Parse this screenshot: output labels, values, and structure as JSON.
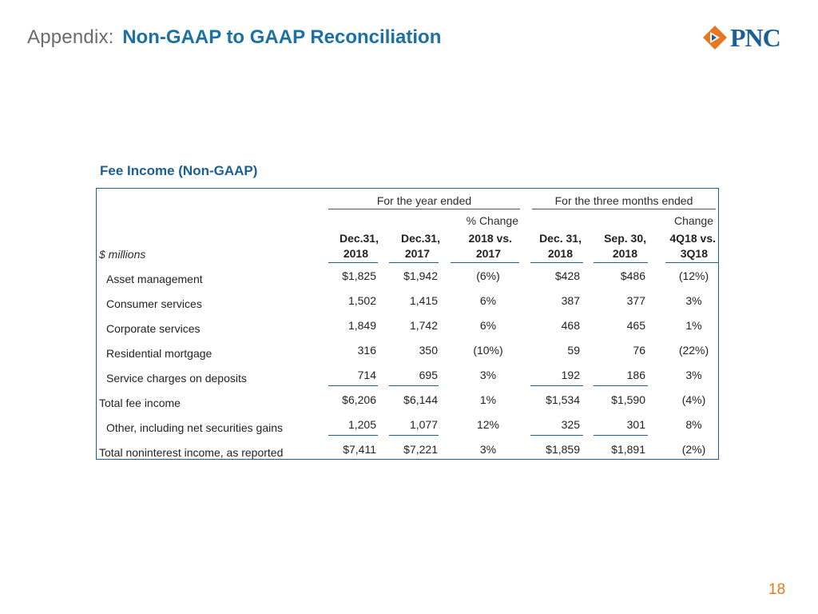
{
  "header": {
    "prefix": "Appendix:",
    "title": "Non-GAAP to GAAP Reconciliation"
  },
  "logo": {
    "text": "PNC",
    "icon": "pnc-arrow-mark-icon",
    "colors": {
      "orange": "#e87722",
      "blue": "#1a5f98"
    }
  },
  "section_title": "Fee Income (Non-GAAP)",
  "table": {
    "group_headers": {
      "year": "For the year ended",
      "quarter": "For the three months ended"
    },
    "pct_change_labels": {
      "year": "% Change",
      "quarter": "Change"
    },
    "units_label": "$ millions",
    "columns": [
      {
        "line1": "Dec.31,",
        "line2": "2018"
      },
      {
        "line1": "Dec.31,",
        "line2": "2017"
      },
      {
        "line1": "2018 vs.",
        "line2": "2017"
      },
      {
        "line1": "Dec. 31,",
        "line2": "2018"
      },
      {
        "line1": "Sep. 30,",
        "line2": "2018"
      },
      {
        "line1": "4Q18 vs.",
        "line2": "3Q18"
      }
    ],
    "rows": [
      {
        "label": "Asset management",
        "values": [
          "$1,825",
          "$1,942",
          "(6%)",
          "$428",
          "$486",
          "(12%)"
        ]
      },
      {
        "label": "Consumer services",
        "values": [
          "1,502",
          "1,415",
          "6%",
          "387",
          "377",
          "3%"
        ]
      },
      {
        "label": "Corporate services",
        "values": [
          "1,849",
          "1,742",
          "6%",
          "468",
          "465",
          "1%"
        ]
      },
      {
        "label": "Residential mortgage",
        "values": [
          "316",
          "350",
          "(10%)",
          "59",
          "76",
          "(22%)"
        ]
      },
      {
        "label": "Service charges on deposits",
        "values": [
          "714",
          "695",
          "3%",
          "192",
          "186",
          "3%"
        ]
      },
      {
        "label": "Total fee income",
        "values": [
          "$6,206",
          "$6,144",
          "1%",
          "$1,534",
          "$1,590",
          "(4%)"
        ]
      },
      {
        "label": "Other, including net securities gains",
        "values": [
          "1,205",
          "1,077",
          "12%",
          "325",
          "301",
          "8%"
        ]
      },
      {
        "label": "Total noninterest income, as reported",
        "values": [
          "$7,411",
          "$7,221",
          "3%",
          "$1,859",
          "$1,891",
          "(2%)"
        ]
      }
    ]
  },
  "page_number": "18"
}
